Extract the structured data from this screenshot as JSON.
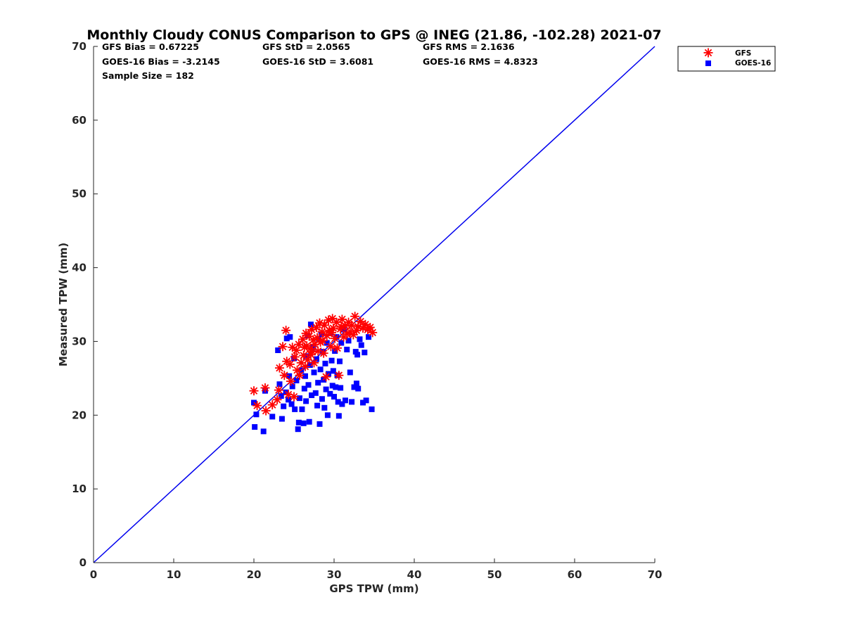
{
  "chart_data": {
    "type": "scatter",
    "title": "Monthly Cloudy CONUS Comparison to GPS @ INEG (21.86, -102.28) 2021-07",
    "xlabel": "GPS TPW (mm)",
    "ylabel": "Measured TPW (mm)",
    "xlim": [
      0,
      70
    ],
    "ylim": [
      0,
      70
    ],
    "xticks": [
      "0",
      "10",
      "20",
      "30",
      "40",
      "50",
      "60",
      "70"
    ],
    "yticks": [
      "0",
      "10",
      "20",
      "30",
      "40",
      "50",
      "60",
      "70"
    ],
    "grid": false,
    "legend_position": "top-right, outside plot",
    "stats": {
      "gfs_bias": "GFS Bias = 0.67225",
      "goes_bias": "GOES-16 Bias = -3.2145",
      "sample_size": "Sample Size = 182",
      "gfs_std": "GFS StD = 2.0565",
      "goes_std": "GOES-16 StD = 3.6081",
      "gfs_rms": "GFS RMS = 2.1636",
      "goes_rms": "GOES-16 RMS = 4.8323"
    },
    "reference_line": {
      "name": "1:1 line",
      "x": [
        0,
        70
      ],
      "y": [
        0,
        70
      ],
      "color": "#0000ee"
    },
    "series": [
      {
        "name": "GFS",
        "marker": "asterisk",
        "color": "#ff0000",
        "points": [
          [
            20.0,
            23.3
          ],
          [
            20.4,
            21.3
          ],
          [
            21.4,
            23.7
          ],
          [
            21.5,
            20.6
          ],
          [
            22.3,
            21.4
          ],
          [
            22.9,
            22.1
          ],
          [
            23.2,
            26.4
          ],
          [
            23.1,
            23.4
          ],
          [
            23.6,
            29.3
          ],
          [
            23.8,
            25.4
          ],
          [
            24.0,
            31.5
          ],
          [
            24.1,
            27.3
          ],
          [
            24.3,
            22.8
          ],
          [
            24.5,
            26.9
          ],
          [
            24.6,
            24.6
          ],
          [
            24.8,
            29.2
          ],
          [
            25.0,
            22.5
          ],
          [
            25.1,
            27.9
          ],
          [
            25.3,
            28.8
          ],
          [
            25.4,
            26.1
          ],
          [
            25.6,
            29.6
          ],
          [
            25.7,
            25.4
          ],
          [
            25.9,
            27.1
          ],
          [
            26.1,
            30.3
          ],
          [
            26.2,
            28.1
          ],
          [
            26.4,
            26.6
          ],
          [
            26.5,
            31.1
          ],
          [
            26.6,
            29.4
          ],
          [
            26.7,
            27.5
          ],
          [
            26.9,
            30.7
          ],
          [
            27.0,
            29.0
          ],
          [
            27.1,
            28.2
          ],
          [
            27.2,
            31.6
          ],
          [
            27.4,
            30.2
          ],
          [
            27.5,
            27.1
          ],
          [
            27.6,
            29.6
          ],
          [
            27.8,
            31.9
          ],
          [
            27.9,
            30.5
          ],
          [
            28.0,
            28.7
          ],
          [
            28.2,
            32.5
          ],
          [
            28.3,
            29.9
          ],
          [
            28.5,
            31.3
          ],
          [
            28.6,
            30.1
          ],
          [
            28.8,
            32.2
          ],
          [
            29.0,
            25.2
          ],
          [
            29.1,
            30.8
          ],
          [
            29.3,
            32.9
          ],
          [
            29.4,
            31.5
          ],
          [
            29.6,
            29.3
          ],
          [
            29.8,
            33.1
          ],
          [
            29.9,
            31.8
          ],
          [
            30.1,
            30.4
          ],
          [
            30.3,
            32.6
          ],
          [
            30.4,
            29.1
          ],
          [
            30.6,
            25.4
          ],
          [
            30.8,
            31.7
          ],
          [
            31.0,
            33.0
          ],
          [
            31.2,
            30.6
          ],
          [
            31.4,
            32.1
          ],
          [
            31.6,
            31.0
          ],
          [
            31.8,
            32.6
          ],
          [
            32.0,
            31.3
          ],
          [
            32.2,
            32.2
          ],
          [
            32.4,
            30.9
          ],
          [
            32.6,
            33.4
          ],
          [
            32.8,
            31.5
          ],
          [
            33.0,
            32.0
          ],
          [
            33.3,
            32.7
          ],
          [
            33.6,
            31.8
          ],
          [
            33.9,
            32.3
          ],
          [
            34.2,
            31.6
          ],
          [
            34.5,
            31.9
          ],
          [
            34.8,
            31.2
          ],
          [
            27.3,
            28.6
          ],
          [
            28.7,
            28.4
          ],
          [
            26.3,
            29.2
          ],
          [
            29.7,
            31.2
          ],
          [
            30.9,
            32.0
          ]
        ]
      },
      {
        "name": "GOES-16",
        "marker": "square",
        "color": "#0000ff",
        "points": [
          [
            20.0,
            21.7
          ],
          [
            20.1,
            18.4
          ],
          [
            20.3,
            20.1
          ],
          [
            21.2,
            17.8
          ],
          [
            21.4,
            23.3
          ],
          [
            22.3,
            19.8
          ],
          [
            23.0,
            28.8
          ],
          [
            23.2,
            24.2
          ],
          [
            23.4,
            22.6
          ],
          [
            23.5,
            19.5
          ],
          [
            23.7,
            21.2
          ],
          [
            24.0,
            23.1
          ],
          [
            24.1,
            30.4
          ],
          [
            24.3,
            22.1
          ],
          [
            24.4,
            25.3
          ],
          [
            24.5,
            30.6
          ],
          [
            24.7,
            21.5
          ],
          [
            24.8,
            23.9
          ],
          [
            25.0,
            27.7
          ],
          [
            25.1,
            20.8
          ],
          [
            25.3,
            24.7
          ],
          [
            25.5,
            18.1
          ],
          [
            25.6,
            19.0
          ],
          [
            25.7,
            22.3
          ],
          [
            25.9,
            26.1
          ],
          [
            26.0,
            20.8
          ],
          [
            26.2,
            18.9
          ],
          [
            26.3,
            23.6
          ],
          [
            26.4,
            25.3
          ],
          [
            26.5,
            21.9
          ],
          [
            26.6,
            28.0
          ],
          [
            26.8,
            24.1
          ],
          [
            26.9,
            19.1
          ],
          [
            27.0,
            26.8
          ],
          [
            27.1,
            32.3
          ],
          [
            27.2,
            22.7
          ],
          [
            27.4,
            29.2
          ],
          [
            27.5,
            25.8
          ],
          [
            27.7,
            23.0
          ],
          [
            27.8,
            27.6
          ],
          [
            27.9,
            21.3
          ],
          [
            28.0,
            24.4
          ],
          [
            28.1,
            30.3
          ],
          [
            28.2,
            18.8
          ],
          [
            28.3,
            26.2
          ],
          [
            28.5,
            22.2
          ],
          [
            28.6,
            28.6
          ],
          [
            28.7,
            24.8
          ],
          [
            28.8,
            21.0
          ],
          [
            28.9,
            27.0
          ],
          [
            29.0,
            23.5
          ],
          [
            29.1,
            29.8
          ],
          [
            29.2,
            20.0
          ],
          [
            29.3,
            25.6
          ],
          [
            29.5,
            22.9
          ],
          [
            29.6,
            31.2
          ],
          [
            29.7,
            27.4
          ],
          [
            29.8,
            24.0
          ],
          [
            29.9,
            26.0
          ],
          [
            30.0,
            22.5
          ],
          [
            30.1,
            28.7
          ],
          [
            30.2,
            23.8
          ],
          [
            30.3,
            30.6
          ],
          [
            30.4,
            25.4
          ],
          [
            30.5,
            21.8
          ],
          [
            30.6,
            19.9
          ],
          [
            30.7,
            27.3
          ],
          [
            30.8,
            23.7
          ],
          [
            30.9,
            29.8
          ],
          [
            31.0,
            21.5
          ],
          [
            31.2,
            31.6
          ],
          [
            31.4,
            22.0
          ],
          [
            31.6,
            28.9
          ],
          [
            31.8,
            30.1
          ],
          [
            32.0,
            25.8
          ],
          [
            32.2,
            21.8
          ],
          [
            32.5,
            23.8
          ],
          [
            32.7,
            28.6
          ],
          [
            32.8,
            24.3
          ],
          [
            32.9,
            28.2
          ],
          [
            33.0,
            23.6
          ],
          [
            33.2,
            30.3
          ],
          [
            33.4,
            29.5
          ],
          [
            33.6,
            21.7
          ],
          [
            33.8,
            28.5
          ],
          [
            34.0,
            22.0
          ],
          [
            34.3,
            30.6
          ],
          [
            34.7,
            20.8
          ],
          [
            26.7,
            30.8
          ],
          [
            28.4,
            31.0
          ]
        ]
      }
    ]
  }
}
